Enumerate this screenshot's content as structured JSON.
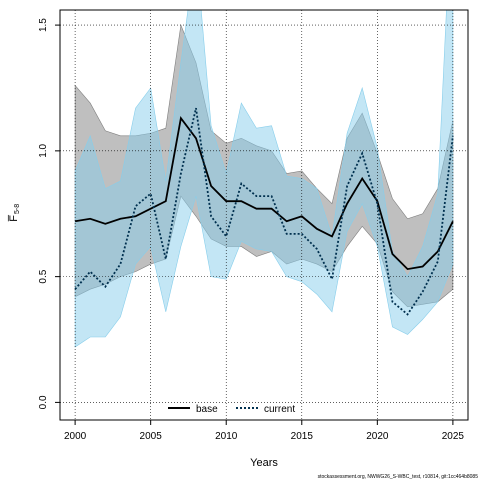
{
  "chart_data": {
    "type": "line",
    "xlabel": "Years",
    "ylabel": "F̅",
    "ylabel_sub": "5-8",
    "xlim": [
      1999,
      2026
    ],
    "ylim": [
      -0.07,
      1.56
    ],
    "xticks": [
      2000,
      2005,
      2010,
      2015,
      2020,
      2025
    ],
    "yticks": [
      0.0,
      0.5,
      1.0,
      1.5
    ],
    "ytick_labels": [
      "0.0",
      "0.5",
      "1.0",
      "1.5"
    ],
    "grid": true,
    "legend_position": "bottom-center",
    "footnote": "stockassessment.org, NWWG26_S-WBC_test, r10814, git:1cc464b8085",
    "x": [
      2000,
      2001,
      2002,
      2003,
      2004,
      2005,
      2006,
      2007,
      2008,
      2009,
      2010,
      2011,
      2012,
      2013,
      2014,
      2015,
      2016,
      2017,
      2018,
      2019,
      2020,
      2021,
      2022,
      2023,
      2024,
      2025
    ],
    "series": [
      {
        "name": "base",
        "color": "#000000",
        "band_color": "#7f7f7f",
        "dash": "solid",
        "values": [
          0.72,
          0.73,
          0.71,
          0.73,
          0.74,
          0.77,
          0.8,
          1.13,
          1.05,
          0.86,
          0.8,
          0.8,
          0.77,
          0.77,
          0.72,
          0.74,
          0.69,
          0.66,
          0.79,
          0.89,
          0.8,
          0.59,
          0.53,
          0.54,
          0.6,
          0.72
        ],
        "lower": [
          0.42,
          0.45,
          0.47,
          0.5,
          0.52,
          0.55,
          0.57,
          0.82,
          0.74,
          0.65,
          0.62,
          0.62,
          0.58,
          0.6,
          0.55,
          0.57,
          0.55,
          0.52,
          0.62,
          0.7,
          0.63,
          0.44,
          0.38,
          0.39,
          0.4,
          0.45
        ],
        "upper": [
          1.26,
          1.19,
          1.08,
          1.06,
          1.06,
          1.07,
          1.09,
          1.5,
          1.35,
          1.08,
          1.03,
          1.05,
          1.02,
          1.0,
          0.91,
          0.92,
          0.85,
          0.79,
          1.05,
          1.15,
          0.99,
          0.81,
          0.73,
          0.75,
          0.85,
          1.12
        ]
      },
      {
        "name": "current",
        "color": "#00304f",
        "band_color": "#87ceeb",
        "dash": "dotted",
        "values": [
          0.45,
          0.52,
          0.46,
          0.55,
          0.78,
          0.83,
          0.57,
          0.91,
          1.17,
          0.74,
          0.66,
          0.87,
          0.82,
          0.82,
          0.67,
          0.67,
          0.61,
          0.49,
          0.86,
          0.99,
          0.79,
          0.4,
          0.35,
          0.44,
          0.56,
          1.06
        ],
        "lower": [
          0.22,
          0.26,
          0.26,
          0.34,
          0.55,
          0.62,
          0.36,
          0.62,
          0.82,
          0.5,
          0.49,
          0.64,
          0.61,
          0.6,
          0.5,
          0.48,
          0.43,
          0.36,
          0.68,
          0.79,
          0.62,
          0.3,
          0.27,
          0.33,
          0.4,
          0.55
        ],
        "upper": [
          0.92,
          1.06,
          0.85,
          0.88,
          1.17,
          1.25,
          0.88,
          1.35,
          1.8,
          1.1,
          0.91,
          1.19,
          1.09,
          1.1,
          0.9,
          0.89,
          0.85,
          0.66,
          1.07,
          1.25,
          1.01,
          0.6,
          0.5,
          0.62,
          0.83,
          2.1
        ]
      }
    ]
  }
}
